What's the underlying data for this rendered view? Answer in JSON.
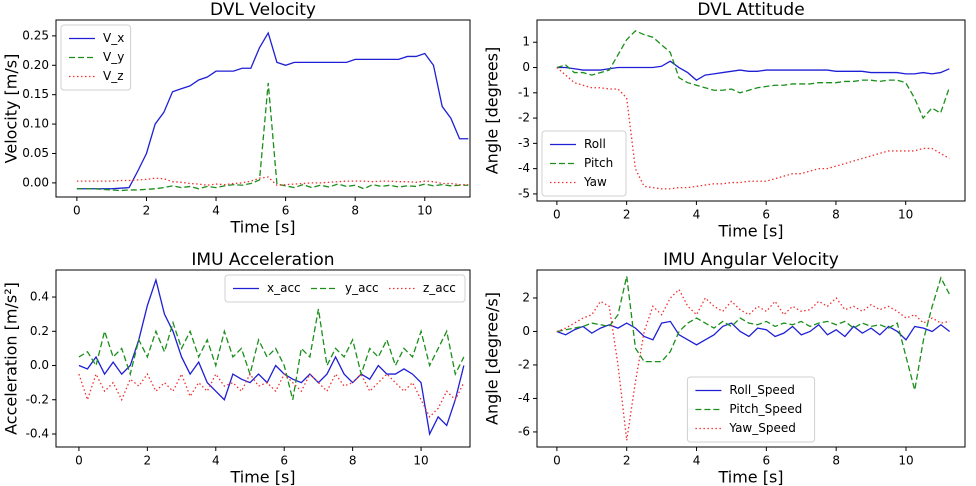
{
  "chart_data": [
    {
      "type": "line",
      "title": "DVL Velocity",
      "xlabel": "Time [s]",
      "ylabel": "Velocity [m/s]",
      "x": [
        0,
        0.25,
        0.5,
        0.75,
        1,
        1.25,
        1.5,
        1.75,
        2,
        2.25,
        2.5,
        2.75,
        3,
        3.25,
        3.5,
        3.75,
        4,
        4.25,
        4.5,
        4.75,
        5,
        5.25,
        5.5,
        5.75,
        6,
        6.25,
        6.5,
        6.75,
        7,
        7.25,
        7.5,
        7.75,
        8,
        8.25,
        8.5,
        8.75,
        9,
        9.25,
        9.5,
        9.75,
        10,
        10.25,
        10.5,
        10.75,
        11,
        11.25
      ],
      "series": [
        {
          "name": "V_x",
          "color": "#1f1fd6",
          "style": "solid",
          "values": [
            -0.01,
            -0.01,
            -0.01,
            -0.01,
            -0.01,
            -0.009,
            -0.008,
            0.02,
            0.05,
            0.1,
            0.12,
            0.155,
            0.16,
            0.165,
            0.175,
            0.18,
            0.19,
            0.19,
            0.19,
            0.195,
            0.195,
            0.23,
            0.255,
            0.205,
            0.2,
            0.205,
            0.205,
            0.205,
            0.205,
            0.205,
            0.205,
            0.205,
            0.21,
            0.21,
            0.21,
            0.21,
            0.21,
            0.21,
            0.215,
            0.215,
            0.22,
            0.2,
            0.13,
            0.11,
            0.075,
            0.075
          ]
        },
        {
          "name": "V_y",
          "color": "#1a8f1a",
          "style": "dashed",
          "values": [
            -0.01,
            -0.01,
            -0.01,
            -0.011,
            -0.012,
            -0.013,
            -0.012,
            -0.012,
            -0.011,
            -0.01,
            -0.008,
            -0.005,
            -0.008,
            -0.006,
            -0.01,
            -0.006,
            -0.008,
            -0.005,
            -0.003,
            -0.004,
            -0.001,
            0.005,
            0.17,
            -0.002,
            -0.005,
            -0.008,
            -0.003,
            -0.008,
            -0.004,
            -0.007,
            -0.002,
            -0.006,
            -0.004,
            -0.01,
            -0.003,
            -0.006,
            -0.004,
            -0.007,
            -0.005,
            -0.006,
            -0.002,
            -0.005,
            -0.003,
            -0.005,
            -0.004,
            -0.004
          ]
        },
        {
          "name": "V_z",
          "color": "#f03030",
          "style": "dotted",
          "values": [
            0.003,
            0.003,
            0.003,
            0.003,
            0.003,
            0.004,
            0.004,
            0.005,
            0.006,
            0.008,
            0.007,
            0.002,
            0.001,
            -0.001,
            -0.002,
            -0.004,
            -0.002,
            -0.003,
            -0.001,
            0,
            0.003,
            0.008,
            0.01,
            -0.004,
            -0.003,
            -0.002,
            -0.001,
            0,
            0,
            0.001,
            0.002,
            0.003,
            0.003,
            0.003,
            0.002,
            0.003,
            0.003,
            0.002,
            0.002,
            0.001,
            0.003,
            0.002,
            -0.001,
            -0.001,
            -0.003,
            -0.003
          ]
        }
      ],
      "xlim": [
        -0.6,
        11.3
      ],
      "ylim": [
        -0.024,
        0.277
      ],
      "xticks": [
        0,
        2,
        4,
        6,
        8,
        10
      ],
      "yticks": [
        {
          "value": 0,
          "label": "0.00"
        },
        0.05,
        {
          "value": 0.1,
          "label": "0.10"
        },
        0.15,
        {
          "value": 0.2,
          "label": "0.20"
        },
        0.25
      ],
      "legend": "upper left",
      "legend_columns": 1
    },
    {
      "type": "line",
      "title": "DVL Attitude",
      "xlabel": "Time [s]",
      "ylabel": "Angle [degrees]",
      "x": [
        0,
        0.25,
        0.5,
        0.75,
        1,
        1.25,
        1.5,
        1.75,
        2,
        2.25,
        2.5,
        2.75,
        3,
        3.25,
        3.5,
        3.75,
        4,
        4.25,
        4.5,
        4.75,
        5,
        5.25,
        5.5,
        5.75,
        6,
        6.25,
        6.5,
        6.75,
        7,
        7.25,
        7.5,
        7.75,
        8,
        8.25,
        8.5,
        8.75,
        9,
        9.25,
        9.5,
        9.75,
        10,
        10.25,
        10.5,
        10.75,
        11,
        11.25
      ],
      "series": [
        {
          "name": "Roll",
          "color": "#1f1fd6",
          "style": "solid",
          "values": [
            0,
            0,
            -0.05,
            -0.1,
            -0.1,
            -0.1,
            -0.05,
            0,
            0,
            0,
            0,
            0,
            0.05,
            0.25,
            0,
            -0.2,
            -0.5,
            -0.3,
            -0.25,
            -0.2,
            -0.15,
            -0.1,
            -0.15,
            -0.15,
            -0.1,
            -0.1,
            -0.1,
            -0.1,
            -0.1,
            -0.1,
            -0.1,
            -0.1,
            -0.15,
            -0.15,
            -0.15,
            -0.15,
            -0.2,
            -0.2,
            -0.2,
            -0.2,
            -0.25,
            -0.25,
            -0.2,
            -0.25,
            -0.2,
            -0.05
          ]
        },
        {
          "name": "Pitch",
          "color": "#1a8f1a",
          "style": "dashed",
          "values": [
            0,
            0.1,
            -0.2,
            -0.2,
            -0.3,
            -0.2,
            -0.1,
            0.5,
            1.1,
            1.45,
            1.3,
            1.2,
            0.9,
            0.6,
            -0.4,
            -0.6,
            -0.7,
            -0.8,
            -0.9,
            -0.9,
            -0.85,
            -1,
            -0.9,
            -0.8,
            -0.75,
            -0.7,
            -0.7,
            -0.65,
            -0.65,
            -0.65,
            -0.6,
            -0.6,
            -0.6,
            -0.55,
            -0.55,
            -0.5,
            -0.5,
            -0.55,
            -0.5,
            -0.5,
            -0.6,
            -1.2,
            -2,
            -1.6,
            -1.8,
            -0.8
          ]
        },
        {
          "name": "Yaw",
          "color": "#f03030",
          "style": "dotted",
          "values": [
            0,
            -0.3,
            -0.6,
            -0.7,
            -0.8,
            -0.8,
            -0.85,
            -0.85,
            -1.2,
            -4,
            -4.7,
            -4.75,
            -4.8,
            -4.8,
            -4.75,
            -4.75,
            -4.7,
            -4.65,
            -4.6,
            -4.6,
            -4.55,
            -4.55,
            -4.5,
            -4.5,
            -4.5,
            -4.4,
            -4.3,
            -4.2,
            -4.2,
            -4.1,
            -4,
            -4,
            -3.9,
            -3.8,
            -3.7,
            -3.6,
            -3.5,
            -3.4,
            -3.3,
            -3.3,
            -3.3,
            -3.3,
            -3.2,
            -3.2,
            -3.4,
            -3.6
          ]
        }
      ],
      "xlim": [
        -0.57,
        11.7
      ],
      "ylim": [
        -5.28,
        1.88
      ],
      "xticks": [
        0,
        2,
        4,
        6,
        8,
        10
      ],
      "yticks": [
        1,
        0,
        -1,
        -2,
        -3,
        -4,
        -5
      ],
      "legend": "lower left",
      "legend_columns": 1
    },
    {
      "type": "line",
      "title": "IMU Acceleration",
      "xlabel": "Time [s]",
      "ylabel": "Acceleration [m/s²]",
      "x": [
        0,
        0.25,
        0.5,
        0.75,
        1,
        1.25,
        1.5,
        1.75,
        2,
        2.25,
        2.5,
        2.75,
        3,
        3.25,
        3.5,
        3.75,
        4,
        4.25,
        4.5,
        4.75,
        5,
        5.25,
        5.5,
        5.75,
        6,
        6.25,
        6.5,
        6.75,
        7,
        7.25,
        7.5,
        7.75,
        8,
        8.25,
        8.5,
        8.75,
        9,
        9.25,
        9.5,
        9.75,
        10,
        10.25,
        10.5,
        10.75,
        11,
        11.25
      ],
      "series": [
        {
          "name": "x_acc",
          "color": "#1f1fd6",
          "style": "solid",
          "values": [
            0,
            -0.02,
            0.05,
            -0.05,
            0.02,
            -0.05,
            0,
            0.15,
            0.35,
            0.5,
            0.3,
            0.2,
            0.05,
            -0.05,
            0.02,
            -0.1,
            -0.15,
            -0.2,
            -0.05,
            -0.08,
            -0.1,
            -0.05,
            -0.1,
            0,
            -0.05,
            -0.08,
            -0.1,
            -0.05,
            -0.1,
            -0.05,
            0.05,
            -0.05,
            -0.1,
            -0.05,
            -0.08,
            0,
            -0.05,
            -0.05,
            -0.02,
            -0.05,
            -0.1,
            -0.4,
            -0.3,
            -0.35,
            -0.2,
            0
          ]
        },
        {
          "name": "y_acc",
          "color": "#1a8f1a",
          "style": "dashed",
          "values": [
            0.05,
            0.08,
            0,
            0.2,
            0.05,
            0.1,
            -0.05,
            0.15,
            0.05,
            0.2,
            0.08,
            0.25,
            0.1,
            0.2,
            0.05,
            0.15,
            0,
            0.2,
            0.05,
            0.1,
            -0.05,
            0.15,
            0.05,
            0.1,
            0,
            -0.2,
            0.1,
            0.05,
            0.33,
            0,
            0.1,
            0.05,
            0.15,
            -0.05,
            0.1,
            0.05,
            0.15,
            0,
            0.1,
            0.05,
            0.2,
            0,
            0.1,
            0.2,
            -0.05,
            0.05
          ]
        },
        {
          "name": "z_acc",
          "color": "#f03030",
          "style": "dotted",
          "values": [
            -0.05,
            -0.2,
            -0.05,
            -0.15,
            -0.1,
            -0.2,
            -0.08,
            -0.12,
            -0.05,
            -0.15,
            -0.1,
            -0.15,
            -0.05,
            -0.18,
            -0.1,
            -0.15,
            -0.05,
            -0.12,
            -0.1,
            -0.15,
            -0.05,
            -0.12,
            -0.1,
            -0.15,
            -0.05,
            -0.1,
            -0.15,
            -0.05,
            -0.1,
            -0.15,
            -0.05,
            -0.12,
            -0.1,
            -0.05,
            -0.15,
            -0.1,
            -0.05,
            -0.1,
            -0.15,
            -0.1,
            -0.2,
            -0.3,
            -0.25,
            -0.15,
            -0.2,
            -0.1
          ]
        }
      ],
      "xlim": [
        -0.67,
        11.43
      ],
      "ylim": [
        -0.476,
        0.558
      ],
      "xticks": [
        0,
        2,
        4,
        6,
        8,
        10
      ],
      "yticks": [
        0.4,
        0.2,
        {
          "value": 0,
          "label": "0.0"
        },
        -0.2,
        -0.4
      ],
      "legend": "upper right",
      "legend_columns": 3
    },
    {
      "type": "line",
      "title": "IMU Angular Velocity",
      "xlabel": "Time [s]",
      "ylabel": "Angle [degree/s]",
      "x": [
        0,
        0.25,
        0.5,
        0.75,
        1,
        1.25,
        1.5,
        1.75,
        2,
        2.25,
        2.5,
        2.75,
        3,
        3.25,
        3.5,
        3.75,
        4,
        4.25,
        4.5,
        4.75,
        5,
        5.25,
        5.5,
        5.75,
        6,
        6.25,
        6.5,
        6.75,
        7,
        7.25,
        7.5,
        7.75,
        8,
        8.25,
        8.5,
        8.75,
        9,
        9.25,
        9.5,
        9.75,
        10,
        10.25,
        10.5,
        10.75,
        11,
        11.25
      ],
      "series": [
        {
          "name": "Roll_Speed",
          "color": "#1f1fd6",
          "style": "solid",
          "values": [
            0,
            -0.2,
            0.1,
            0.3,
            -0.1,
            0.2,
            0.4,
            0.2,
            0.5,
            0.2,
            -0.3,
            -0.5,
            0.5,
            0.6,
            -0.2,
            -0.5,
            -0.8,
            -0.5,
            -0.2,
            0.3,
            0.5,
            0,
            -0.3,
            0.2,
            0.1,
            -0.3,
            -0.1,
            0.3,
            -0.2,
            0,
            0.4,
            -0.2,
            0.1,
            -0.3,
            0.3,
            -0.1,
            0.2,
            -0.2,
            0.3,
            0,
            -0.5,
            0.3,
            0.2,
            0,
            0.4,
            0
          ]
        },
        {
          "name": "Pitch_Speed",
          "color": "#1a8f1a",
          "style": "dashed",
          "values": [
            0,
            0.1,
            0.2,
            0.3,
            0.5,
            0.4,
            0.3,
            1,
            3.3,
            -1,
            -1.8,
            -1.8,
            -1.8,
            -1.2,
            0,
            0.5,
            0.8,
            0.5,
            0.2,
            0.6,
            0.3,
            0.8,
            0.5,
            0.4,
            0.6,
            0.3,
            0.5,
            0.4,
            0.6,
            0.3,
            0.5,
            0.6,
            0.4,
            0.6,
            0.2,
            0.5,
            0.3,
            0.4,
            0.2,
            0.5,
            -1.5,
            -3.5,
            -0.5,
            1.5,
            3.2,
            2.2
          ]
        },
        {
          "name": "Yaw_Speed",
          "color": "#f03030",
          "style": "dotted",
          "values": [
            0,
            0.2,
            0.5,
            0.8,
            1,
            1.8,
            1.5,
            -2,
            -6.5,
            -3,
            0,
            1.5,
            1,
            2,
            2.5,
            1.5,
            1,
            2,
            1.5,
            1.2,
            1.8,
            1.3,
            1,
            1.5,
            1.2,
            1.8,
            1,
            1.5,
            1.2,
            1.3,
            1.8,
            1.5,
            2,
            1.3,
            1.5,
            1.2,
            1.6,
            1.3,
            1.5,
            1.2,
            0.8,
            1,
            0.5,
            0.8,
            0.5,
            0.6
          ]
        }
      ],
      "xlim": [
        -0.57,
        11.69
      ],
      "ylim": [
        -6.9,
        3.67
      ],
      "xticks": [
        0,
        2,
        4,
        6,
        8,
        10
      ],
      "yticks": [
        2,
        0,
        -2,
        -4,
        -6
      ],
      "legend": "lower center",
      "legend_columns": 1
    }
  ]
}
